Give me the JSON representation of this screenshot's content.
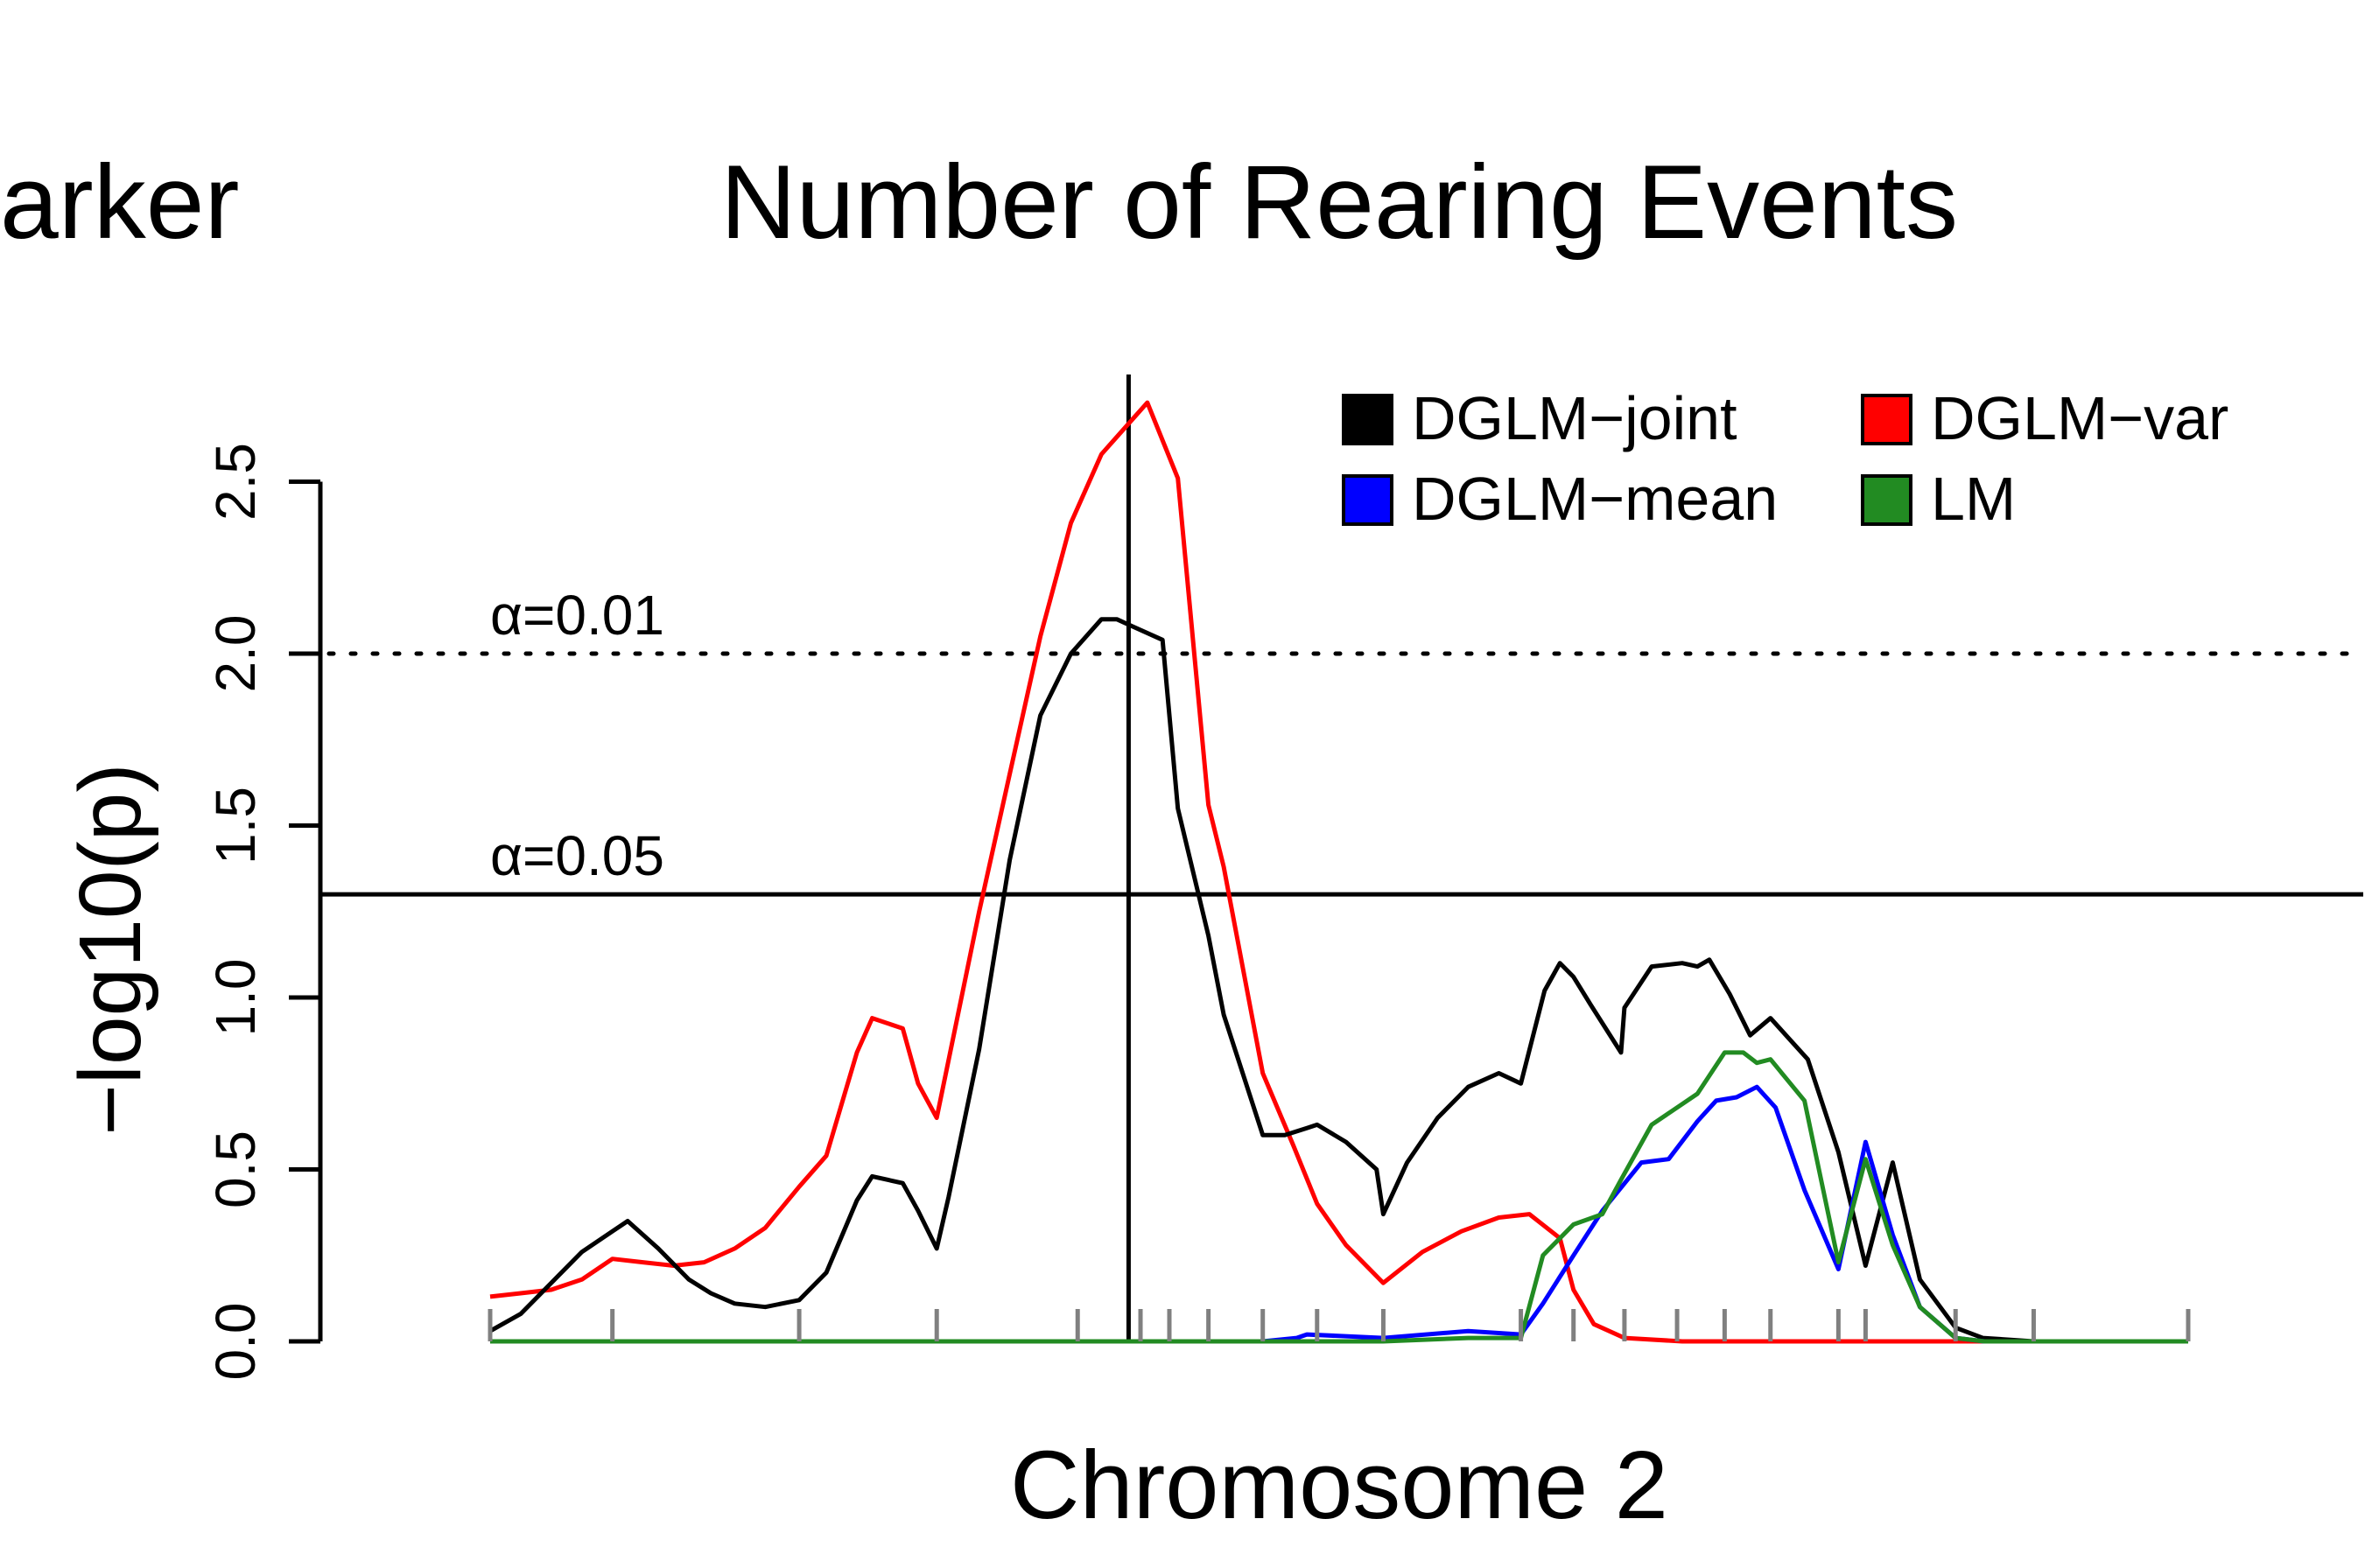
{
  "chart_data": {
    "type": "line",
    "title": "Number of Rearing Events",
    "partial_title": "arker",
    "xlabel": "Chromosome 2",
    "ylabel": "−log10(p)",
    "ylim": [
      0,
      2.6
    ],
    "yticks": [
      "0.0",
      "0.5",
      "1.0",
      "1.5",
      "2.0",
      "2.5"
    ],
    "ytick_values": [
      0,
      0.5,
      1.0,
      1.5,
      2.0,
      2.5
    ],
    "xlim": [
      0,
      100
    ],
    "marker_positions": [
      0,
      7.2,
      18.2,
      26.3,
      34.6,
      38.3,
      40.0,
      42.3,
      45.5,
      48.7,
      52.6,
      60.7,
      63.8,
      66.8,
      69.9,
      72.7,
      75.4,
      79.4,
      81.0,
      86.3,
      90.9,
      100
    ],
    "peak_position": 37.6,
    "thresholds": [
      {
        "value": 2.0,
        "label": "α=0.01",
        "style": "dotted"
      },
      {
        "value": 1.3,
        "label": "α=0.05",
        "style": "solid"
      }
    ],
    "legend_position": "top-right",
    "series": [
      {
        "name": "DGLM−joint",
        "color": "#000000",
        "x": [
          0,
          1.8,
          3.6,
          5.4,
          7.2,
          8.1,
          9.9,
          11.7,
          13.0,
          14.4,
          16.2,
          18.2,
          19.8,
          21.6,
          22.5,
          24.3,
          25.2,
          26.3,
          27.0,
          28.8,
          30.6,
          32.4,
          34.2,
          36.0,
          36.9,
          37.8,
          39.6,
          40.5,
          42.3,
          43.2,
          45.5,
          46.8,
          48.1,
          48.7,
          50.4,
          52.2,
          52.6,
          54.0,
          55.8,
          57.6,
          59.4,
          60.7,
          62.1,
          63.0,
          63.8,
          64.8,
          66.6,
          66.8,
          68.4,
          70.2,
          71.1,
          71.8,
          73.0,
          74.2,
          75.4,
          76.5,
          77.6,
          79.4,
          81.0,
          82.6,
          84.2,
          86.3,
          87.9,
          90.9,
          93.5,
          100
        ],
        "y": [
          0.03,
          0.08,
          0.17,
          0.26,
          0.32,
          0.35,
          0.27,
          0.18,
          0.14,
          0.11,
          0.1,
          0.12,
          0.2,
          0.41,
          0.48,
          0.46,
          0.38,
          0.27,
          0.42,
          0.85,
          1.4,
          1.82,
          2.0,
          2.1,
          2.1,
          2.08,
          2.04,
          1.55,
          1.18,
          0.95,
          0.6,
          0.6,
          0.62,
          0.63,
          0.58,
          0.5,
          0.37,
          0.52,
          0.65,
          0.74,
          0.78,
          0.75,
          1.02,
          1.1,
          1.06,
          0.98,
          0.84,
          0.97,
          1.09,
          1.1,
          1.09,
          1.11,
          1.01,
          0.89,
          0.94,
          0.88,
          0.82,
          0.55,
          0.22,
          0.52,
          0.18,
          0.04,
          0.01,
          0.0,
          0.0,
          0.0
        ]
      },
      {
        "name": "DGLM−var",
        "color": "#ff0000",
        "x": [
          0,
          1.8,
          3.6,
          5.4,
          7.2,
          9.0,
          10.8,
          12.6,
          14.4,
          16.2,
          18.2,
          19.8,
          21.6,
          22.5,
          24.3,
          25.2,
          26.3,
          28.8,
          30.6,
          32.4,
          34.2,
          36.0,
          37.8,
          38.7,
          40.5,
          42.3,
          43.2,
          45.5,
          47.3,
          48.7,
          50.4,
          52.6,
          54.9,
          57.2,
          59.4,
          61.2,
          63.0,
          63.8,
          65.0,
          66.8,
          70.2,
          74.2,
          80.0,
          86.3,
          100
        ],
        "y": [
          0.13,
          0.14,
          0.15,
          0.18,
          0.24,
          0.23,
          0.22,
          0.23,
          0.27,
          0.33,
          0.45,
          0.54,
          0.84,
          0.94,
          0.91,
          0.75,
          0.65,
          1.25,
          1.65,
          2.05,
          2.38,
          2.58,
          2.68,
          2.73,
          2.51,
          1.56,
          1.38,
          0.78,
          0.57,
          0.4,
          0.28,
          0.17,
          0.26,
          0.32,
          0.36,
          0.37,
          0.3,
          0.15,
          0.05,
          0.01,
          0.0,
          0.0,
          0.0,
          0.0,
          0.0
        ]
      },
      {
        "name": "DGLM−mean",
        "color": "#0000ff",
        "x": [
          0,
          45.5,
          47.5,
          48.1,
          52.6,
          57.6,
          60.7,
          62.0,
          63.8,
          65.5,
          67.8,
          69.4,
          71.1,
          72.2,
          73.4,
          74.6,
          75.7,
          77.4,
          79.4,
          81.0,
          82.6,
          84.2,
          86.3,
          88.0,
          100
        ],
        "y": [
          0.0,
          0.0,
          0.01,
          0.02,
          0.01,
          0.03,
          0.02,
          0.11,
          0.25,
          0.38,
          0.52,
          0.53,
          0.64,
          0.7,
          0.71,
          0.74,
          0.68,
          0.44,
          0.21,
          0.58,
          0.31,
          0.1,
          0.01,
          0.0,
          0.0
        ]
      },
      {
        "name": "LM",
        "color": "#228b22",
        "x": [
          0,
          45.5,
          52.6,
          57.6,
          60.7,
          62.0,
          63.8,
          65.5,
          66.6,
          68.4,
          70.2,
          71.1,
          72.7,
          73.8,
          74.6,
          75.4,
          77.4,
          79.4,
          81.0,
          82.6,
          84.2,
          86.3,
          88.0,
          100
        ],
        "y": [
          0.0,
          0.0,
          0.0,
          0.01,
          0.01,
          0.25,
          0.34,
          0.37,
          0.47,
          0.63,
          0.69,
          0.72,
          0.84,
          0.84,
          0.81,
          0.82,
          0.7,
          0.23,
          0.53,
          0.28,
          0.1,
          0.01,
          0.0,
          0.0
        ]
      }
    ]
  }
}
